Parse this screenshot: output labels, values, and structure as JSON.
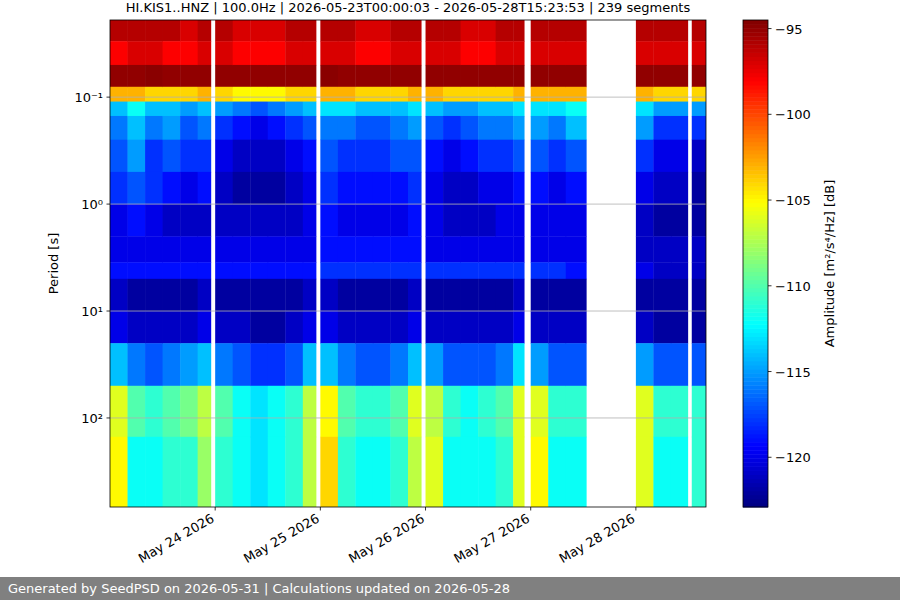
{
  "chart_data": {
    "type": "heatmap",
    "title": "HI.KIS1..HNZ | 100.0Hz | 2026-05-23T00:00:03 - 2026-05-28T15:23:53 | 239 segments",
    "ylabel": "Period [s]",
    "footer": "Generated by SeedPSD on 2026-05-31 | Calculations updated on 2026-05-28",
    "log": "y",
    "grid": "y",
    "xlim": [
      "2026-05-23T00:00",
      "2026-05-28T16:00"
    ],
    "ylim": [
      0.019,
      680
    ],
    "xticks": [
      {
        "value": "2026-05-24T00:00",
        "label": "May 24 2026"
      },
      {
        "value": "2026-05-25T00:00",
        "label": "May 25 2026"
      },
      {
        "value": "2026-05-26T00:00",
        "label": "May 26 2026"
      },
      {
        "value": "2026-05-27T00:00",
        "label": "May 27 2026"
      },
      {
        "value": "2026-05-28T00:00",
        "label": "May 28 2026"
      }
    ],
    "yticks": [
      {
        "value": 0.1,
        "label": "10⁻¹"
      },
      {
        "value": 1,
        "label": "10⁰"
      },
      {
        "value": 10,
        "label": "10¹"
      },
      {
        "value": 100,
        "label": "10²"
      }
    ],
    "x": [
      "2026-05-23T00:00",
      "2026-05-23T04:00",
      "2026-05-23T08:00",
      "2026-05-23T12:00",
      "2026-05-23T16:00",
      "2026-05-23T20:00",
      "2026-05-23T23:00",
      "2026-05-24T00:00",
      "2026-05-24T04:00",
      "2026-05-24T08:00",
      "2026-05-24T12:00",
      "2026-05-24T16:00",
      "2026-05-24T20:00",
      "2026-05-24T23:00",
      "2026-05-25T00:00",
      "2026-05-25T04:00",
      "2026-05-25T08:00",
      "2026-05-25T12:00",
      "2026-05-25T16:00",
      "2026-05-25T20:00",
      "2026-05-25T23:00",
      "2026-05-26T00:00",
      "2026-05-26T04:00",
      "2026-05-26T08:00",
      "2026-05-26T12:00",
      "2026-05-26T16:00",
      "2026-05-26T20:00",
      "2026-05-26T22:30",
      "2026-05-27T00:00",
      "2026-05-27T04:00",
      "2026-05-27T08:00",
      "2026-05-27T12:40",
      "2026-05-28T00:00",
      "2026-05-28T04:00",
      "2026-05-28T08:00",
      "2026-05-28T11:50",
      "2026-05-28T12:45",
      "2026-05-28T16:00"
    ],
    "y": [
      0.019,
      0.03,
      0.05,
      0.08,
      0.11,
      0.15,
      0.25,
      0.5,
      1,
      2,
      3.5,
      5,
      10,
      20,
      50,
      150,
      680
    ],
    "cells": [
      [
        -96,
        -98,
        -95,
        -103,
        -114,
        -116,
        -117,
        -118,
        -120,
        -120,
        -119,
        -121,
        -120,
        -114,
        -106,
        -105
      ],
      [
        -96,
        -97,
        -95,
        -103,
        -112,
        -114,
        -115,
        -117,
        -119,
        -120,
        -119,
        -122,
        -121,
        -116,
        -110,
        -112
      ],
      [
        -96,
        -97,
        -94.8,
        -104,
        -114,
        -116,
        -118,
        -118,
        -120,
        -120,
        -119,
        -122,
        -121,
        -117,
        -111,
        -112
      ],
      [
        -96,
        -98,
        -95,
        -104,
        -114,
        -115,
        -117,
        -119,
        -121,
        -120,
        -119,
        -122,
        -121,
        -116,
        -110,
        -111
      ],
      [
        -97,
        -98,
        -95,
        -104,
        -115,
        -117,
        -118,
        -120,
        -121,
        -120,
        -119,
        -122,
        -121,
        -115,
        -109,
        -111
      ],
      [
        -96,
        -97,
        -95,
        -103,
        -114,
        -116,
        -118,
        -119,
        -121,
        -120,
        -119,
        -121,
        -120,
        -114,
        -107,
        -108
      ],
      null,
      [
        -96,
        -97,
        -95,
        -104,
        -115,
        -118,
        -120,
        -121,
        -121,
        -120,
        -119,
        -122,
        -121,
        -116,
        -110,
        -111
      ],
      [
        -97,
        -98,
        -95,
        -105,
        -116,
        -119,
        -121,
        -122,
        -121,
        -120,
        -119,
        -122,
        -121,
        -117,
        -112,
        -112
      ],
      [
        -97,
        -98,
        -95,
        -105,
        -117,
        -120,
        -121,
        -122,
        -121,
        -120,
        -119,
        -122,
        -122,
        -118,
        -113,
        -113
      ],
      [
        -97,
        -98,
        -95,
        -105,
        -116,
        -119,
        -121,
        -122,
        -121,
        -120,
        -119,
        -122,
        -122,
        -118,
        -112,
        -112
      ],
      [
        -96,
        -97,
        -95,
        -104,
        -115,
        -118,
        -120,
        -121,
        -121,
        -120,
        -119,
        -122,
        -121,
        -117,
        -111,
        -111
      ],
      [
        -96,
        -97,
        -95,
        -104,
        -114,
        -117,
        -119,
        -120,
        -120,
        -120,
        -119,
        -121,
        -120,
        -114,
        -107,
        -107
      ],
      null,
      [
        -96,
        -97,
        -94.8,
        -103,
        -113,
        -116,
        -117,
        -118,
        -119,
        -119,
        -118,
        -121,
        -120,
        -114,
        -105,
        -104
      ],
      [
        -96,
        -97,
        -95,
        -103,
        -113,
        -116,
        -118,
        -119,
        -120,
        -119,
        -118,
        -122,
        -121,
        -116,
        -110,
        -111
      ],
      [
        -97,
        -98,
        -95,
        -104,
        -114,
        -117,
        -118,
        -119,
        -120,
        -119,
        -118,
        -122,
        -121,
        -117,
        -111,
        -112
      ],
      [
        -97,
        -98,
        -95,
        -104,
        -114,
        -117,
        -118,
        -119,
        -120,
        -119,
        -118,
        -122,
        -121,
        -117,
        -111,
        -112
      ],
      [
        -96,
        -97,
        -95,
        -104,
        -114,
        -116,
        -117,
        -119,
        -120,
        -119,
        -118,
        -122,
        -121,
        -116,
        -110,
        -111
      ],
      [
        -96,
        -97,
        -95,
        -103,
        -113,
        -115,
        -117,
        -118,
        -119,
        -119,
        -118,
        -121,
        -120,
        -114,
        -106,
        -107
      ],
      null,
      [
        -96,
        -97,
        -95,
        -103,
        -114,
        -117,
        -119,
        -120,
        -120,
        -120,
        -118,
        -122,
        -121,
        -115,
        -107,
        -106
      ],
      [
        -96,
        -97,
        -95,
        -104,
        -115,
        -118,
        -120,
        -121,
        -121,
        -120,
        -118,
        -122,
        -121,
        -117,
        -111,
        -112
      ],
      [
        -97,
        -98,
        -95,
        -104,
        -115,
        -117,
        -119,
        -121,
        -121,
        -120,
        -118,
        -122,
        -121,
        -117,
        -112,
        -112
      ],
      [
        -97,
        -98,
        -95,
        -104,
        -114,
        -116,
        -118,
        -120,
        -121,
        -120,
        -118,
        -122,
        -121,
        -117,
        -111,
        -112
      ],
      [
        -96,
        -97,
        -95,
        -104,
        -114,
        -116,
        -118,
        -120,
        -120,
        -120,
        -118,
        -122,
        -121,
        -116,
        -110,
        -111
      ],
      [
        -96,
        -97,
        -95,
        -103,
        -113,
        -115,
        -117,
        -119,
        -120,
        -120,
        -118,
        -121,
        -120,
        -113,
        -106,
        -106
      ],
      null,
      [
        -96,
        -97,
        -95,
        -103,
        -113,
        -115,
        -117,
        -119,
        -120,
        -120,
        -118,
        -122,
        -121,
        -115,
        -106,
        -105
      ],
      [
        -96,
        -97,
        -95,
        -103,
        -113,
        -116,
        -118,
        -120,
        -120,
        -120,
        -118,
        -122,
        -121,
        -117,
        -111,
        -112
      ],
      [
        -96,
        -97,
        -95,
        -103,
        -112,
        -114,
        -117,
        -119,
        -120,
        -120,
        -119,
        -122,
        -121,
        -117,
        -111,
        -112
      ],
      null,
      [
        -96,
        -97,
        -95,
        -103,
        -113,
        -115,
        -118,
        -120,
        -121,
        -121,
        -120,
        -122,
        -121,
        -115,
        -106,
        -106
      ],
      [
        -96,
        -97,
        -95,
        -104,
        -115,
        -118,
        -120,
        -121,
        -122,
        -121,
        -121,
        -122,
        -122,
        -117,
        -111,
        -112
      ],
      [
        -96,
        -97,
        -95,
        -104,
        -115,
        -118,
        -120,
        -121,
        -122,
        -121,
        -121,
        -122,
        -122,
        -117,
        -111,
        -112
      ],
      null,
      [
        -96,
        -97,
        -95,
        -104,
        -115,
        -118,
        -121,
        -122,
        -122,
        -121,
        -121,
        -122,
        -122,
        -117,
        -111,
        -111
      ]
    ],
    "colorbar": {
      "label": "Amplitude [m²/s⁴/Hz] [dB]",
      "range": [
        -122.9,
        -94.5
      ],
      "ticks": [
        {
          "value": -95,
          "label": "−95"
        },
        {
          "value": -100,
          "label": "−100"
        },
        {
          "value": -105,
          "label": "−105"
        },
        {
          "value": -110,
          "label": "−110"
        },
        {
          "value": -115,
          "label": "−115"
        },
        {
          "value": -120,
          "label": "−120"
        }
      ]
    }
  }
}
